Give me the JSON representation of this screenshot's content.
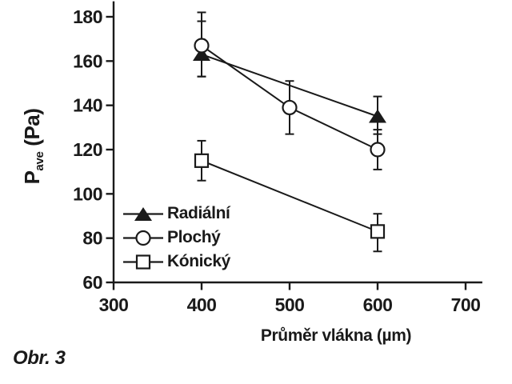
{
  "figure": {
    "caption": "Obr. 3"
  },
  "chart_data": {
    "type": "line",
    "title": "",
    "xlabel": "Průměr vlákna (µm)",
    "ylabel": "P_ave (Pa)",
    "ylabel_parts": {
      "main": "P",
      "sub": "ave",
      "rest": " (Pa)"
    },
    "xlim": [
      300,
      719
    ],
    "ylim": [
      60,
      187
    ],
    "xticks": [
      300,
      400,
      500,
      600,
      700
    ],
    "yticks": [
      60,
      80,
      100,
      120,
      140,
      160,
      180
    ],
    "grid": false,
    "error_bars": true,
    "legend_position": "inside-lower-left",
    "series": [
      {
        "name": "Radiální",
        "marker": "triangle-filled",
        "points": [
          {
            "x": 400,
            "y": 163,
            "err_up": 15,
            "err_down": 10
          },
          {
            "x": 600,
            "y": 135,
            "err_up": 9,
            "err_down": 8
          }
        ]
      },
      {
        "name": "Plochý",
        "marker": "circle-open",
        "points": [
          {
            "x": 400,
            "y": 167,
            "err_up": 15,
            "err_down": 14
          },
          {
            "x": 500,
            "y": 139,
            "err_up": 12,
            "err_down": 12
          },
          {
            "x": 600,
            "y": 120,
            "err_up": 9,
            "err_down": 9
          }
        ]
      },
      {
        "name": "Kónický",
        "marker": "square-open",
        "points": [
          {
            "x": 400,
            "y": 115,
            "err_up": 9,
            "err_down": 9
          },
          {
            "x": 600,
            "y": 83,
            "err_up": 8,
            "err_down": 9
          }
        ]
      }
    ],
    "colors": {
      "line": "#1a1a1a",
      "background": "#ffffff"
    }
  }
}
